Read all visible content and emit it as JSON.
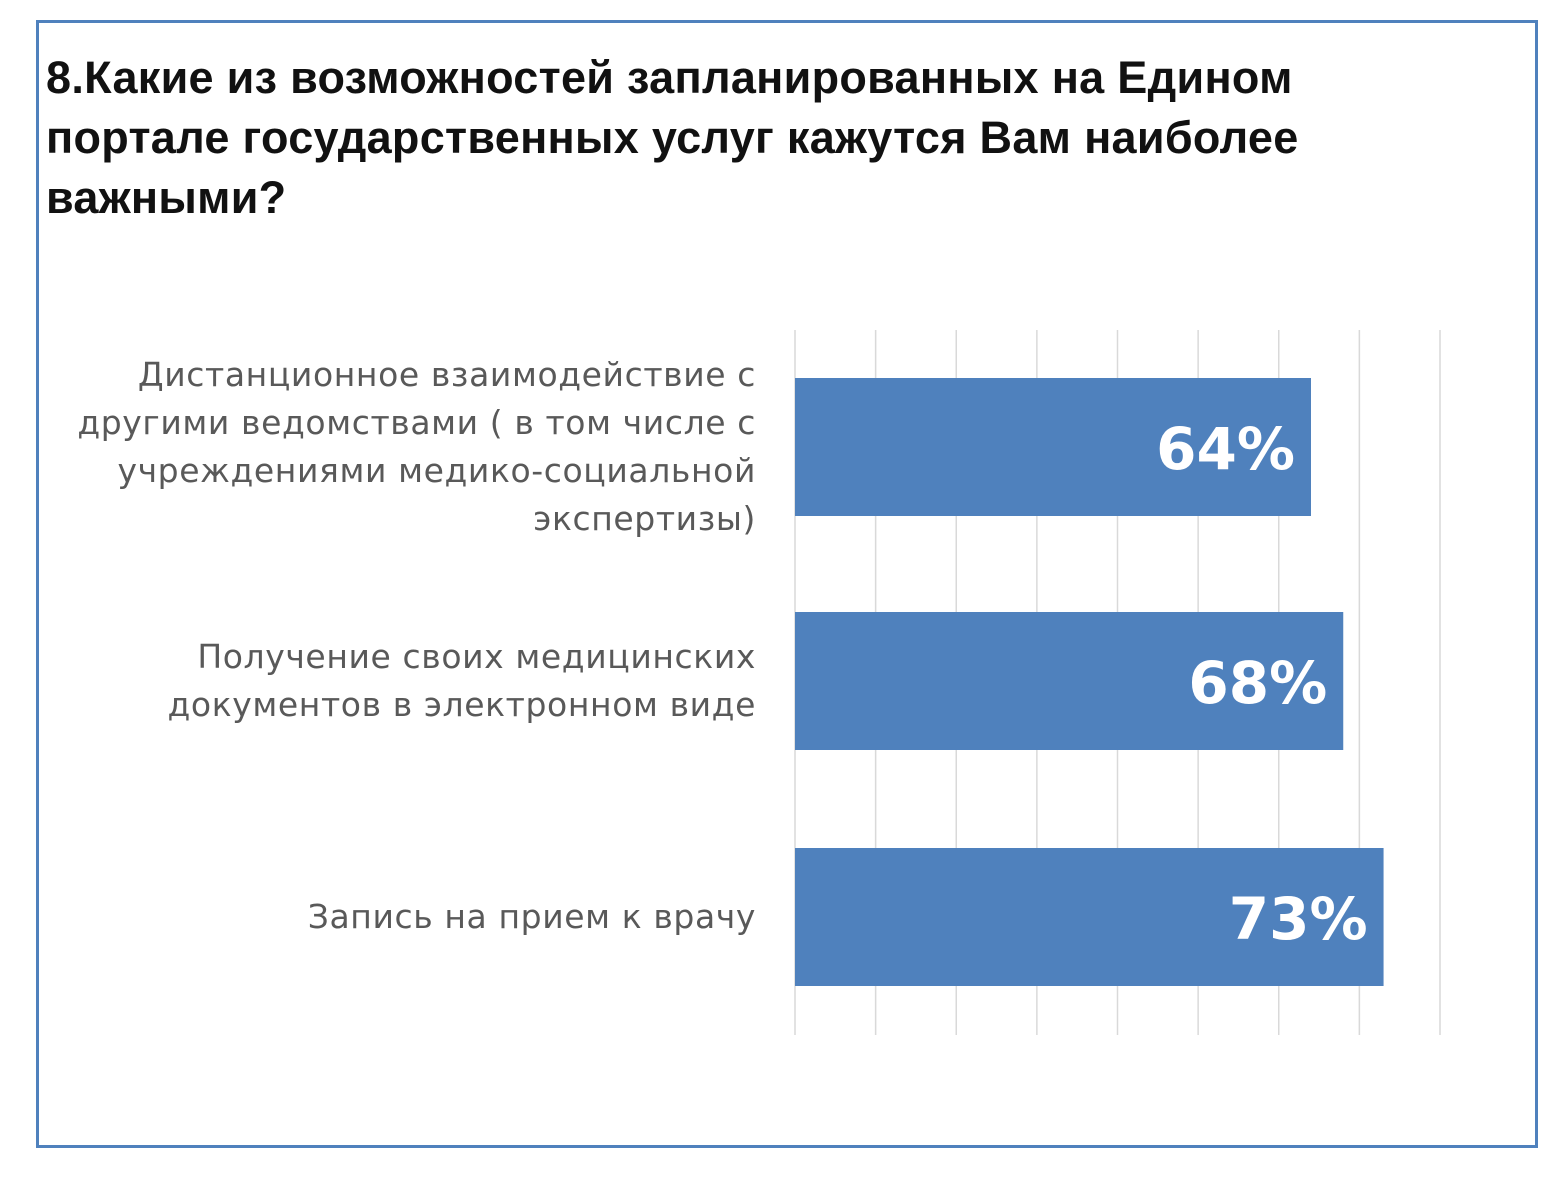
{
  "chart_data": {
    "type": "bar",
    "orientation": "horizontal",
    "title": "8.Какие из возможностей запланированных на Едином портале государственных услуг кажутся Вам наиболее важными?",
    "categories": [
      "Дистанционное взаимодействие с другими ведомствами ( в том числе с учреждениями медико-социальной экспертизы)",
      "Получение своих медицинских документов в электронном виде",
      "Запись на прием к врачу"
    ],
    "values": [
      64,
      68,
      73
    ],
    "data_labels": [
      "64%",
      "68%",
      "73%"
    ],
    "xlim": [
      0,
      80
    ],
    "grid": true,
    "bar_color": "#4f81bd",
    "label_color": "#ffffff",
    "grid_color": "#d9d9d9",
    "frame_color": "#4f81bd"
  }
}
